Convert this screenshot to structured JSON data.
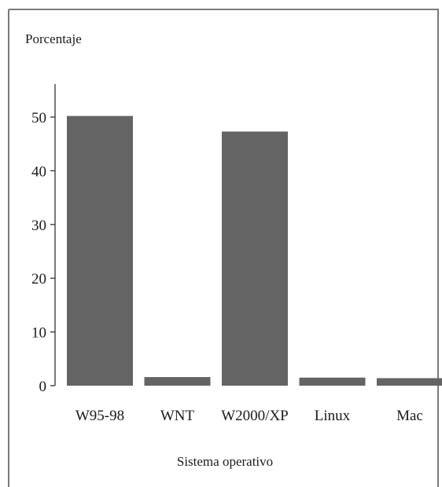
{
  "chart_data": {
    "type": "bar",
    "ylabel": "Porcentaje",
    "xlabel": "Sistema operativo",
    "categories": [
      "W95-98",
      "WNT",
      "W2000/XP",
      "Linux",
      "Mac"
    ],
    "values": [
      50.2,
      1.6,
      47.3,
      1.5,
      1.4
    ],
    "ylim": [
      0,
      57
    ],
    "yticks": [
      0,
      10,
      20,
      30,
      40,
      50
    ],
    "grid": false,
    "legend": "none",
    "bar_color": "#646464",
    "axis_color": "#333333",
    "frame_color": "#7a7a7a"
  }
}
